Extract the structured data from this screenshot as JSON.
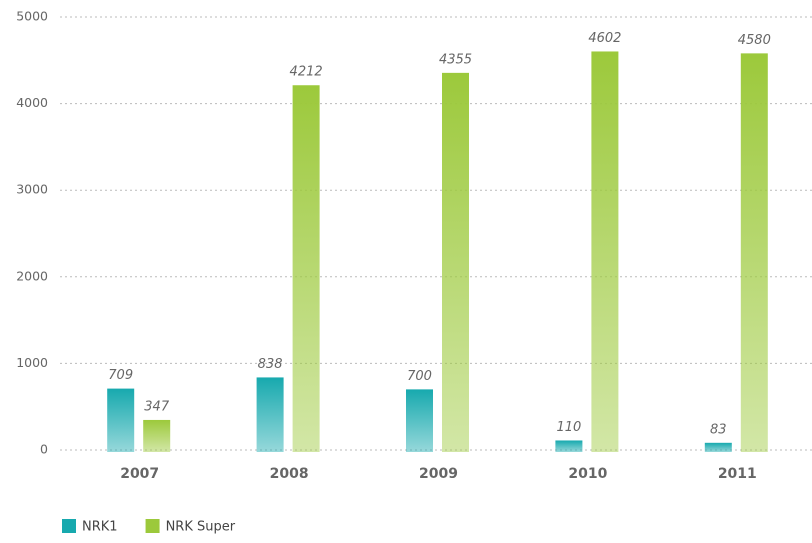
{
  "chart_data": {
    "type": "bar",
    "categories": [
      "2007",
      "2008",
      "2009",
      "2010",
      "2011"
    ],
    "series": [
      {
        "name": "NRK1",
        "color": "#17a9ae",
        "values": [
          709,
          838,
          700,
          110,
          83
        ]
      },
      {
        "name": "NRK Super",
        "color": "#9cc93b",
        "values": [
          347,
          4212,
          4355,
          4602,
          4580
        ]
      }
    ],
    "ylim": [
      0,
      5000
    ],
    "yticks": [
      0,
      1000,
      2000,
      3000,
      4000,
      5000
    ],
    "grid": true,
    "legend": "bottom-left"
  }
}
